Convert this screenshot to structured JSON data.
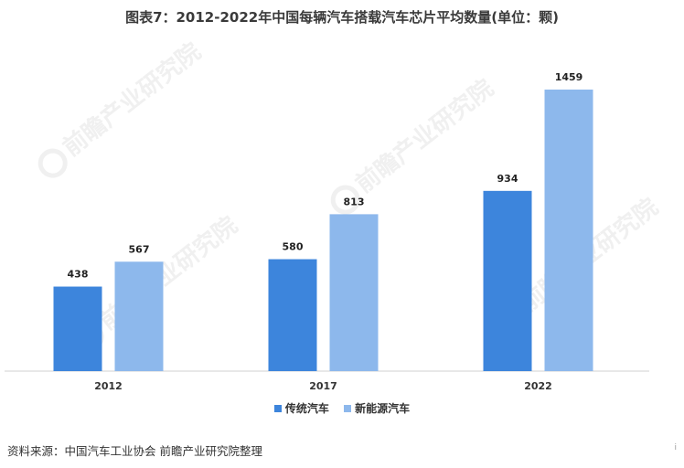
{
  "title": "图表7：2012-2022年中国每辆汽车搭载汽车芯片平均数量(单位：颗)",
  "chart_data": {
    "type": "bar",
    "categories": [
      "2012",
      "2017",
      "2022"
    ],
    "series": [
      {
        "name": "传统汽车",
        "values": [
          438,
          580,
          934
        ],
        "color": "#3d85dc"
      },
      {
        "name": "新能源汽车",
        "values": [
          567,
          813,
          1459
        ],
        "color": "#8db8ec"
      }
    ],
    "ylim": [
      0,
      1750
    ],
    "grid": false,
    "legend_position": "bottom"
  },
  "watermark": {
    "text": "前瞻产业研究院"
  },
  "source": "资料来源：中国汽车工业协会 前瞻产业研究院整理",
  "corner_mark": "i"
}
